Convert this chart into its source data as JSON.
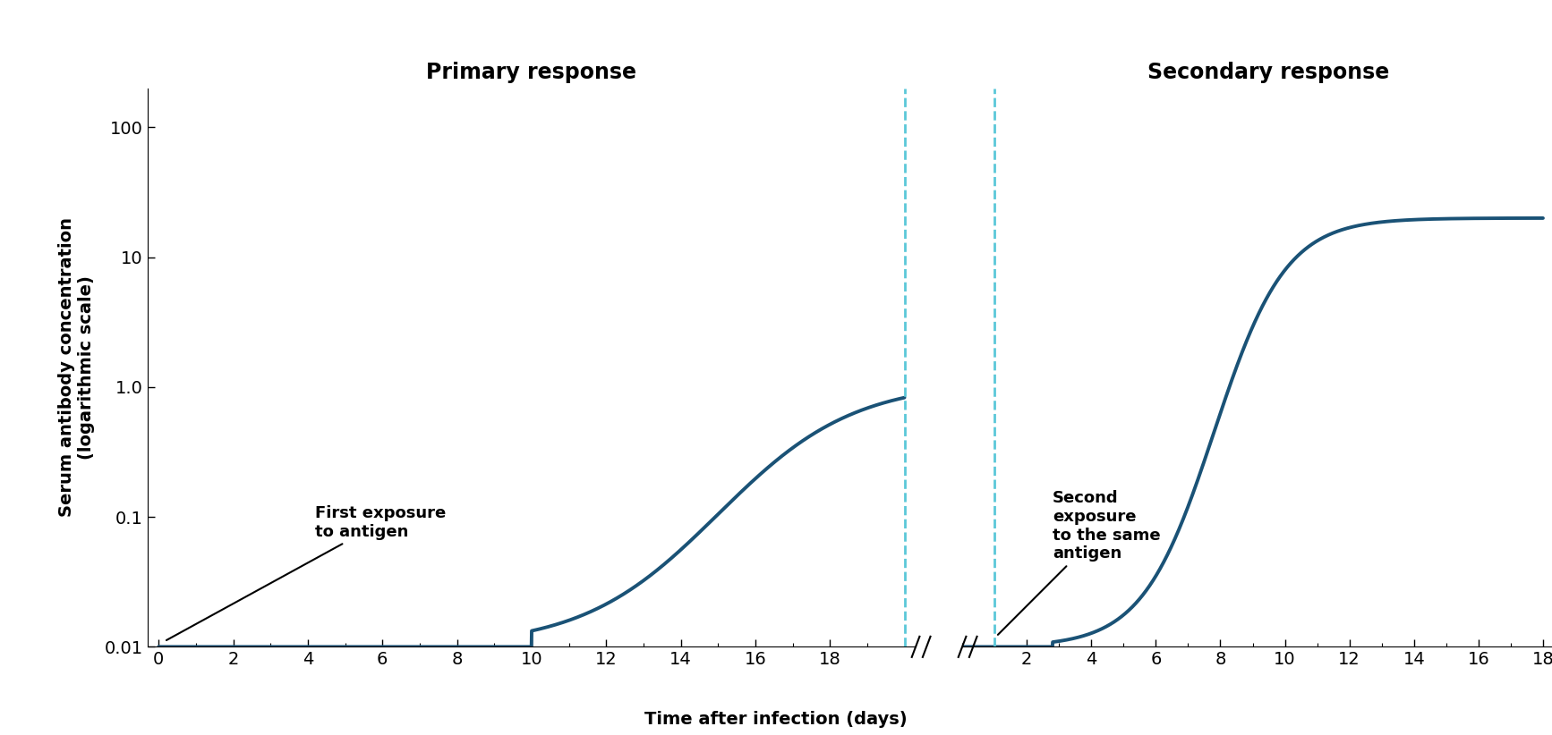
{
  "title_primary": "Primary response",
  "title_secondary": "Secondary response",
  "xlabel": "Time after infection (days)",
  "ylabel": "Serum antibody concentration\n(logarithmic scale)",
  "curve_color": "#1a5276",
  "curve_linewidth": 2.8,
  "dashed_line_color": "#5bc8d8",
  "ylim_log": [
    0.01,
    200
  ],
  "yticks": [
    0.01,
    0.1,
    1.0,
    10,
    100
  ],
  "ytick_labels": [
    "0.01",
    "0.1",
    "1.0",
    "10",
    "100"
  ],
  "annotation1_text": "First exposure\nto antigen",
  "annotation2_text": "Second\nexposure\nto the same\nantigen",
  "primary_xticks": [
    0,
    2,
    4,
    6,
    8,
    10,
    12,
    14,
    16,
    18
  ],
  "secondary_xticks": [
    2,
    4,
    6,
    8,
    10,
    12,
    14,
    16,
    18
  ],
  "background_color": "#ffffff",
  "title_fontsize": 17,
  "label_fontsize": 14,
  "tick_fontsize": 14,
  "annot_fontsize": 13
}
